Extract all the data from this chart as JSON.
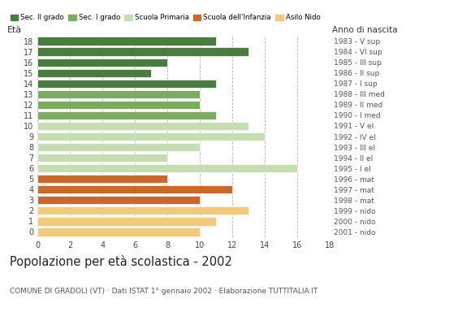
{
  "title": "Popolazione per età scolastica - 2002",
  "subtitle": "COMUNE DI GRADOLI (VT) · Dati ISTAT 1° gennaio 2002 · Elaborazione TUTTITALIA.IT",
  "xlabel_age": "Età",
  "xlabel_year": "Anno di nascita",
  "ages": [
    18,
    17,
    16,
    15,
    14,
    13,
    12,
    11,
    10,
    9,
    8,
    7,
    6,
    5,
    4,
    3,
    2,
    1,
    0
  ],
  "years": [
    "1983 - V sup",
    "1984 - VI sup",
    "1985 - III sup",
    "1986 - II sup",
    "1987 - I sup",
    "1988 - III med",
    "1989 - II med",
    "1990 - I med",
    "1991 - V el",
    "1992 - IV el",
    "1993 - III el",
    "1994 - II el",
    "1995 - I el",
    "1996 - mat",
    "1997 - mat",
    "1998 - mat",
    "1999 - nido",
    "2000 - nido",
    "2001 - nido"
  ],
  "values": [
    11,
    13,
    8,
    7,
    11,
    10,
    10,
    11,
    13,
    14,
    10,
    8,
    16,
    8,
    12,
    10,
    13,
    11,
    10
  ],
  "categories": [
    "Sec. II grado",
    "Sec. I grado",
    "Scuola Primaria",
    "Scuola dell'Infanzia",
    "Asilo Nido"
  ],
  "colors": {
    "Sec. II grado": "#4a7c3f",
    "Sec. I grado": "#7aab5e",
    "Scuola Primaria": "#c5ddb0",
    "Scuola dell'Infanzia": "#c8682a",
    "Asilo Nido": "#f5c97a"
  },
  "bar_colors": [
    "#4a7c3f",
    "#4a7c3f",
    "#4a7c3f",
    "#4a7c3f",
    "#4a7c3f",
    "#7aab5e",
    "#7aab5e",
    "#7aab5e",
    "#c5ddb0",
    "#c5ddb0",
    "#c5ddb0",
    "#c5ddb0",
    "#c5ddb0",
    "#c8682a",
    "#c8682a",
    "#c8682a",
    "#f5c97a",
    "#f5c97a",
    "#f5c97a"
  ],
  "xlim": [
    0,
    18
  ],
  "xticks": [
    0,
    2,
    4,
    6,
    8,
    10,
    12,
    14,
    16,
    18
  ]
}
